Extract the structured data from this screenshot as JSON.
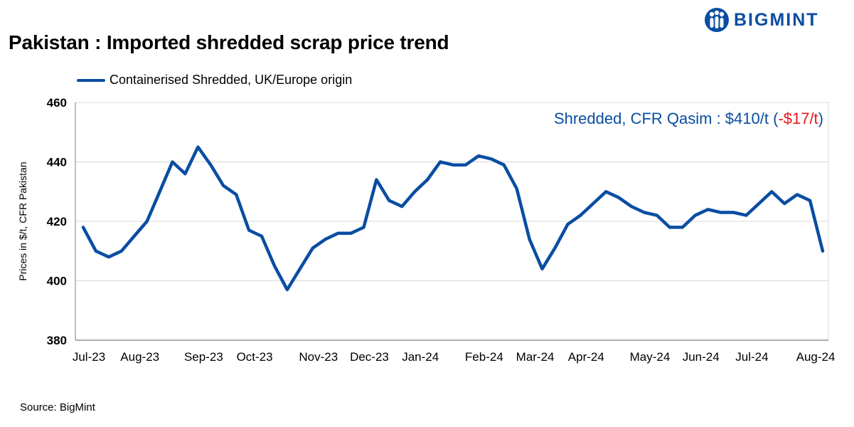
{
  "title": "Pakistan : Imported shredded scrap price trend",
  "logo": {
    "icon": "bigmint-people-icon",
    "text": "BIGMINT"
  },
  "legend": {
    "label": "Containerised Shredded, UK/Europe origin"
  },
  "source": "Source: BigMint",
  "colors": {
    "line": "#0a4da2",
    "negative": "#e8141c",
    "axis": "#7f7f7f",
    "grid": "#d9d9d9"
  },
  "chart_data": {
    "type": "line",
    "title": "Pakistan : Imported shredded scrap price trend",
    "ylabel": "Prices in $/t, CFR Pakistan",
    "xlabel": "",
    "ylim": [
      380,
      460
    ],
    "yticks": [
      380,
      400,
      420,
      440,
      460
    ],
    "grid": true,
    "legend_position": "top-left",
    "x_tick_labels": [
      {
        "label": "Jul-23",
        "i": 0
      },
      {
        "label": "Aug-23",
        "i": 4
      },
      {
        "label": "Sep-23",
        "i": 9
      },
      {
        "label": "Oct-23",
        "i": 13
      },
      {
        "label": "Nov-23",
        "i": 18
      },
      {
        "label": "Dec-23",
        "i": 22
      },
      {
        "label": "Jan-24",
        "i": 26
      },
      {
        "label": "Feb-24",
        "i": 31
      },
      {
        "label": "Mar-24",
        "i": 35
      },
      {
        "label": "Apr-24",
        "i": 39
      },
      {
        "label": "May-24",
        "i": 44
      },
      {
        "label": "Jun-24",
        "i": 48
      },
      {
        "label": "Jul-24",
        "i": 52
      },
      {
        "label": "Aug-24",
        "i": 57
      }
    ],
    "series": [
      {
        "name": "Containerised Shredded, UK/Europe origin",
        "values": [
          418,
          410,
          408,
          410,
          415,
          420,
          430,
          440,
          436,
          445,
          439,
          432,
          429,
          417,
          415,
          405,
          397,
          404,
          411,
          414,
          416,
          416,
          418,
          434,
          427,
          425,
          430,
          434,
          440,
          439,
          439,
          442,
          441,
          439,
          431,
          414,
          404,
          411,
          419,
          422,
          426,
          430,
          428,
          425,
          423,
          422,
          418,
          418,
          422,
          424,
          423,
          423,
          422,
          426,
          430,
          426,
          429,
          427,
          410
        ]
      }
    ],
    "annotation": {
      "prefix": "Shredded, CFR Qasim : $410/t (",
      "change": "-$17/t",
      "suffix": ")"
    }
  }
}
